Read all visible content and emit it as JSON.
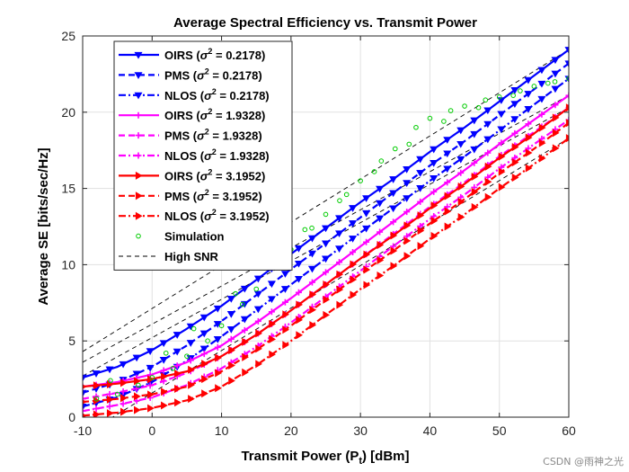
{
  "chart_data": {
    "type": "line",
    "title": "Average Spectral Efficiency vs. Transmit Power",
    "xlabel": "Transmit Power (P_t) [dBm]",
    "ylabel": "Average SE [bits/sec/Hz]",
    "xlim": [
      -10,
      60
    ],
    "ylim": [
      0,
      25
    ],
    "xticks": [
      -10,
      0,
      10,
      20,
      30,
      40,
      50,
      60
    ],
    "yticks": [
      0,
      5,
      10,
      15,
      20,
      25
    ],
    "grid": true,
    "legend_position": "top-left",
    "x": [
      -10,
      -5,
      0,
      5,
      10,
      15,
      20,
      25,
      30,
      35,
      40,
      45,
      50,
      55,
      60
    ],
    "series": [
      {
        "name": "OIRS (σ² = 0.2178)",
        "label_prefix": "OIRS",
        "sigma": "0.2178",
        "color": "#0000ff",
        "style": "solid",
        "marker": "down-triangle",
        "values": [
          2.6,
          3.3,
          4.4,
          5.8,
          7.3,
          9.0,
          10.7,
          12.4,
          14.1,
          15.7,
          17.4,
          19.0,
          20.7,
          22.4,
          24.1
        ]
      },
      {
        "name": "PMS (σ² = 0.2178)",
        "label_prefix": "PMS",
        "sigma": "0.2178",
        "color": "#0000ff",
        "style": "dashed",
        "marker": "down-triangle",
        "values": [
          1.6,
          2.3,
          3.3,
          4.7,
          6.3,
          8.0,
          9.7,
          11.4,
          13.1,
          14.8,
          16.5,
          18.1,
          19.8,
          21.5,
          23.2
        ]
      },
      {
        "name": "NLOS (σ² = 0.2178)",
        "label_prefix": "NLOS",
        "sigma": "0.2178",
        "color": "#0000ff",
        "style": "dashdot",
        "marker": "down-triangle",
        "values": [
          0.7,
          1.3,
          2.3,
          3.7,
          5.3,
          7.0,
          8.7,
          10.4,
          12.1,
          13.8,
          15.5,
          17.1,
          18.8,
          20.5,
          22.2
        ]
      },
      {
        "name": "OIRS (σ² = 1.9328)",
        "label_prefix": "OIRS",
        "sigma": "1.9328",
        "color": "#ff00ff",
        "style": "solid",
        "marker": "plus",
        "values": [
          2.0,
          2.3,
          2.8,
          3.6,
          4.7,
          6.2,
          7.8,
          9.5,
          11.2,
          12.9,
          14.6,
          16.2,
          17.9,
          19.5,
          21.1
        ]
      },
      {
        "name": "PMS (σ² = 1.9328)",
        "label_prefix": "PMS",
        "sigma": "1.9328",
        "color": "#ff00ff",
        "style": "dashed",
        "marker": "plus",
        "values": [
          1.2,
          1.6,
          2.1,
          2.9,
          4.0,
          5.4,
          7.0,
          8.7,
          10.4,
          12.1,
          13.8,
          15.4,
          17.1,
          18.7,
          20.3
        ]
      },
      {
        "name": "NLOS (σ² = 1.9328)",
        "label_prefix": "NLOS",
        "sigma": "1.9328",
        "color": "#ff00ff",
        "style": "dashdot",
        "marker": "plus",
        "values": [
          0.4,
          0.8,
          1.3,
          2.1,
          3.2,
          4.6,
          6.2,
          7.9,
          9.6,
          11.3,
          13.0,
          14.6,
          16.3,
          17.9,
          19.5
        ]
      },
      {
        "name": "OIRS (σ² = 3.1952)",
        "label_prefix": "OIRS",
        "sigma": "3.1952",
        "color": "#ff0000",
        "style": "solid",
        "marker": "right-triangle",
        "values": [
          2.0,
          2.2,
          2.5,
          3.0,
          4.0,
          5.4,
          7.0,
          8.7,
          10.4,
          12.0,
          13.7,
          15.3,
          17.0,
          18.6,
          20.3
        ]
      },
      {
        "name": "PMS (σ² = 3.1952)",
        "label_prefix": "PMS",
        "sigma": "3.1952",
        "color": "#ff0000",
        "style": "dashed",
        "marker": "right-triangle",
        "values": [
          1.0,
          1.2,
          1.5,
          2.0,
          3.0,
          4.4,
          6.0,
          7.7,
          9.4,
          11.0,
          12.7,
          14.3,
          16.0,
          17.6,
          19.3
        ]
      },
      {
        "name": "NLOS (σ² = 3.1952)",
        "label_prefix": "NLOS",
        "sigma": "3.1952",
        "color": "#ff0000",
        "style": "dashdot",
        "marker": "right-triangle",
        "values": [
          0.1,
          0.3,
          0.6,
          1.1,
          2.0,
          3.4,
          5.0,
          6.7,
          8.4,
          10.0,
          11.7,
          13.3,
          15.0,
          16.6,
          18.3
        ]
      }
    ],
    "simulation": {
      "name": "Simulation",
      "color": "#00cc00",
      "marker": "circle",
      "points": [
        [
          -8,
          1.2
        ],
        [
          -5,
          1.5
        ],
        [
          -2,
          2.1
        ],
        [
          0,
          2.6
        ],
        [
          3,
          3.2
        ],
        [
          5,
          4.0
        ],
        [
          8,
          5.0
        ],
        [
          10,
          6.0
        ],
        [
          13,
          7.4
        ],
        [
          15,
          8.4
        ],
        [
          18,
          10.0
        ],
        [
          20,
          11.0
        ],
        [
          23,
          12.4
        ],
        [
          25,
          13.3
        ],
        [
          28,
          14.6
        ],
        [
          30,
          15.5
        ],
        [
          33,
          16.8
        ],
        [
          35,
          17.6
        ],
        [
          38,
          19.0
        ],
        [
          40,
          19.6
        ],
        [
          43,
          20.1
        ],
        [
          45,
          20.4
        ],
        [
          48,
          20.8
        ],
        [
          50,
          21.0
        ],
        [
          53,
          21.4
        ],
        [
          55,
          21.7
        ],
        [
          58,
          22.0
        ],
        [
          60,
          22.2
        ],
        [
          -6,
          2.4
        ],
        [
          2,
          4.2
        ],
        [
          6,
          5.8
        ],
        [
          12,
          8.1
        ],
        [
          16,
          9.9
        ],
        [
          22,
          12.3
        ],
        [
          27,
          14.2
        ],
        [
          32,
          16.1
        ],
        [
          37,
          17.9
        ],
        [
          42,
          19.4
        ],
        [
          47,
          20.3
        ],
        [
          52,
          21.1
        ],
        [
          57,
          21.9
        ]
      ]
    },
    "high_snr": {
      "name": "High SNR",
      "color": "#000000",
      "style": "dashed",
      "lines": [
        [
          [
            -10,
            4.3
          ],
          [
            60,
            24.1
          ]
        ],
        [
          [
            -10,
            3.6
          ],
          [
            60,
            21.1
          ]
        ],
        [
          [
            -10,
            2.7
          ],
          [
            60,
            20.3
          ]
        ],
        [
          [
            -10,
            -1.2
          ],
          [
            60,
            18.3
          ]
        ]
      ]
    }
  },
  "watermark": "CSDN @雨神之光"
}
